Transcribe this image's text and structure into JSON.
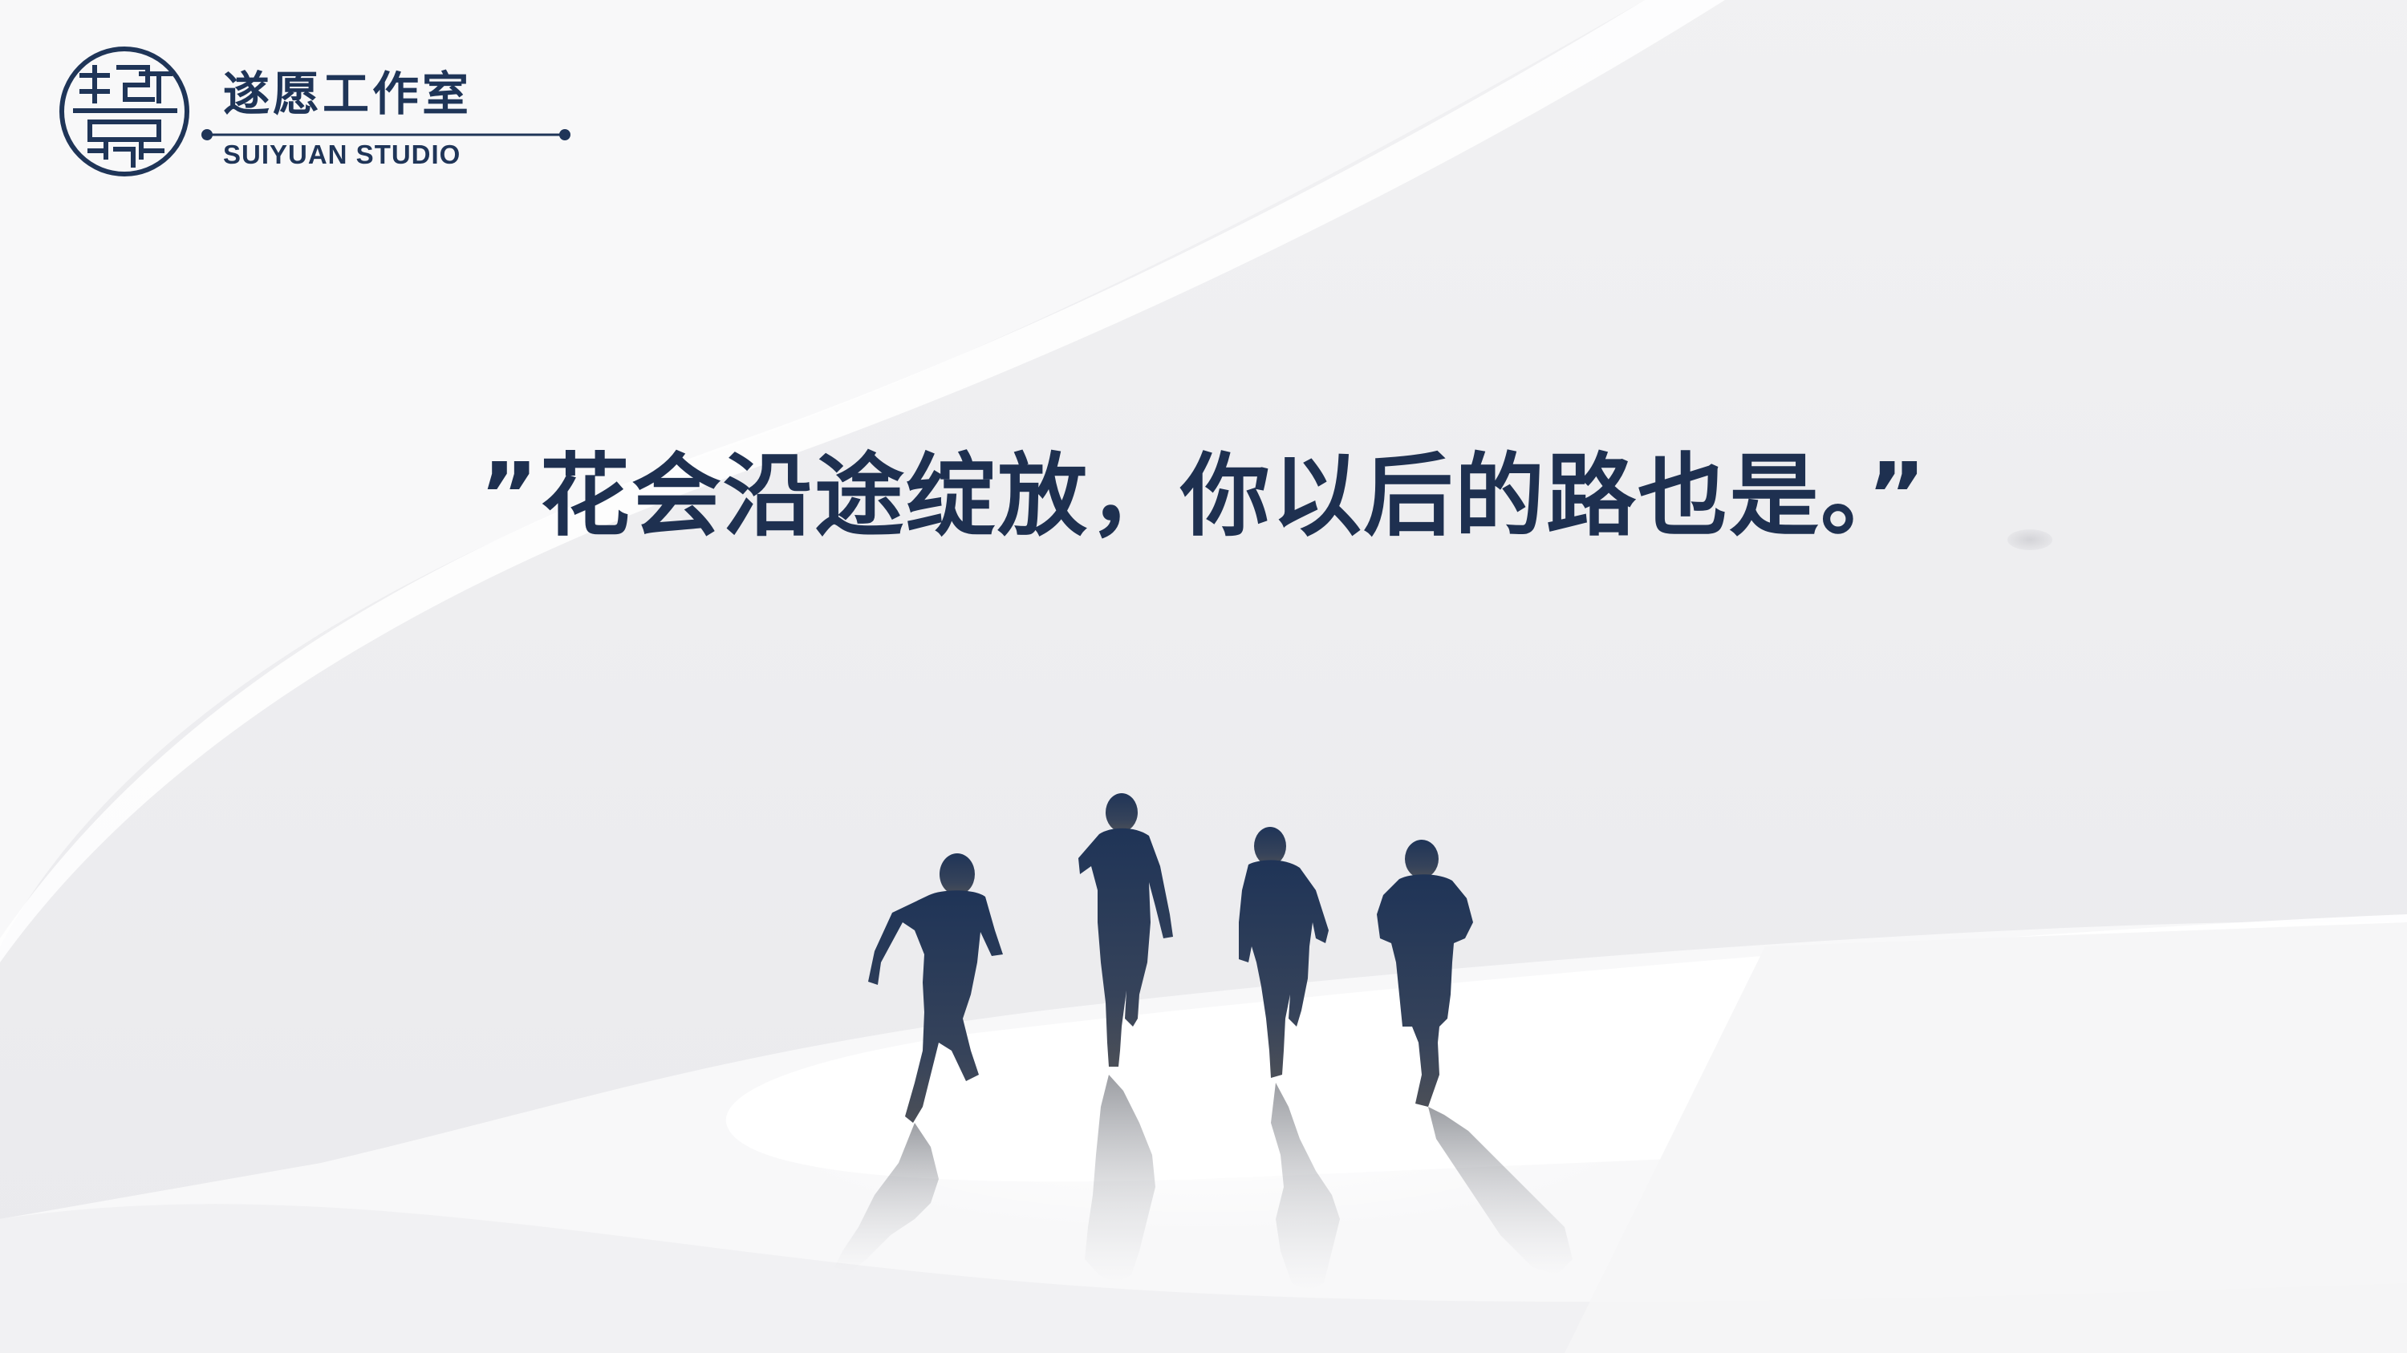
{
  "logo": {
    "emblem_icon": "flower-seal-icon",
    "name_cn": "遂愿工作室",
    "name_en": "SUIYUAN STUDIO"
  },
  "quote": {
    "text": "”花会沿途绽放，你以后的路也是。”"
  },
  "colors": {
    "primary": "#1f3558",
    "background": "#f5f5f7"
  },
  "illustration": {
    "icon": "running-people-silhouette-icon",
    "figure_count": 4
  }
}
